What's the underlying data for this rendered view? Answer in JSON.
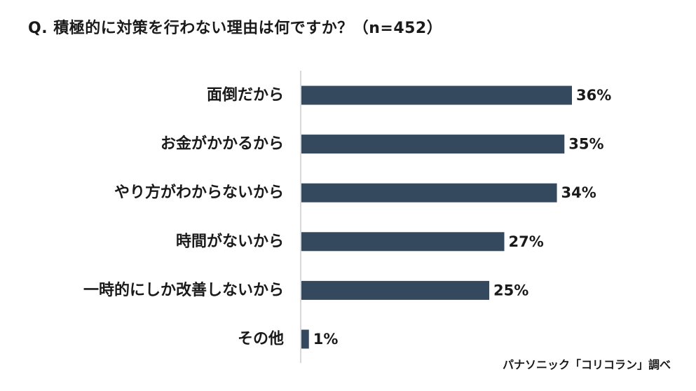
{
  "title": "Q. 積極的に対策を行わない理由は何ですか？（n=452）",
  "source": "パナソニック「コリコラン」調べ",
  "colors": {
    "bar": "#34495e",
    "axis": "#cccccc",
    "text": "#1a1a1a"
  },
  "chart_data": {
    "type": "bar",
    "orientation": "horizontal",
    "title": "Q. 積極的に対策を行わない理由は何ですか？（n=452）",
    "categories": [
      "面倒だから",
      "お金がかかるから",
      "やり方がわからないから",
      "時間がないから",
      "一時的にしか改善しないから",
      "その他"
    ],
    "values": [
      36,
      35,
      34,
      27,
      25,
      1
    ],
    "value_labels": [
      "36%",
      "35%",
      "34%",
      "27%",
      "25%",
      "1%"
    ],
    "unit": "%",
    "xlim": [
      0,
      36
    ],
    "grid": false,
    "legend": "none"
  }
}
